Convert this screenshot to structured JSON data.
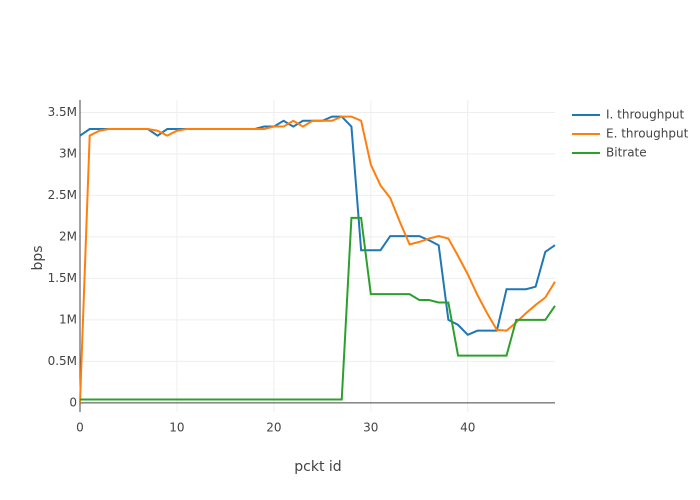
{
  "chart_data": {
    "type": "line",
    "x_label": "pckt id",
    "y_label": "bps",
    "x": [
      0,
      1,
      2,
      3,
      4,
      5,
      6,
      7,
      8,
      9,
      10,
      11,
      12,
      13,
      14,
      15,
      16,
      17,
      18,
      19,
      20,
      21,
      22,
      23,
      24,
      25,
      26,
      27,
      28,
      29,
      30,
      31,
      32,
      33,
      34,
      35,
      36,
      37,
      38,
      39,
      40,
      41,
      42,
      43,
      44,
      45,
      46,
      47,
      48,
      49
    ],
    "series": [
      {
        "name": "I. throughput",
        "color": "#1f77b4",
        "values": [
          3220000,
          3300000,
          3300000,
          3300000,
          3300000,
          3300000,
          3300000,
          3300000,
          3220000,
          3300000,
          3300000,
          3300000,
          3300000,
          3300000,
          3300000,
          3300000,
          3300000,
          3300000,
          3300000,
          3330000,
          3330000,
          3400000,
          3330000,
          3400000,
          3400000,
          3400000,
          3450000,
          3450000,
          3330000,
          1840000,
          1840000,
          1840000,
          2010000,
          2010000,
          2010000,
          2010000,
          1960000,
          1900000,
          1000000,
          940000,
          820000,
          870000,
          870000,
          870000,
          1370000,
          1370000,
          1370000,
          1400000,
          1820000,
          1900000
        ]
      },
      {
        "name": "E. throughput",
        "color": "#ff7f0e",
        "values": [
          0,
          3220000,
          3280000,
          3300000,
          3300000,
          3300000,
          3300000,
          3300000,
          3280000,
          3220000,
          3280000,
          3300000,
          3300000,
          3300000,
          3300000,
          3300000,
          3300000,
          3300000,
          3300000,
          3300000,
          3330000,
          3330000,
          3400000,
          3330000,
          3400000,
          3400000,
          3400000,
          3450000,
          3450000,
          3400000,
          2870000,
          2620000,
          2470000,
          2180000,
          1910000,
          1940000,
          1980000,
          2010000,
          1980000,
          1770000,
          1550000,
          1300000,
          1080000,
          880000,
          870000,
          970000,
          1080000,
          1180000,
          1270000,
          1460000
        ]
      },
      {
        "name": "Bitrate",
        "color": "#2ca02c",
        "values": [
          40000,
          40000,
          40000,
          40000,
          40000,
          40000,
          40000,
          40000,
          40000,
          40000,
          40000,
          40000,
          40000,
          40000,
          40000,
          40000,
          40000,
          40000,
          40000,
          40000,
          40000,
          40000,
          40000,
          40000,
          40000,
          40000,
          40000,
          40000,
          2230000,
          2230000,
          1310000,
          1310000,
          1310000,
          1310000,
          1310000,
          1240000,
          1240000,
          1210000,
          1210000,
          570000,
          570000,
          570000,
          570000,
          570000,
          570000,
          1000000,
          1000000,
          1000000,
          1000000,
          1170000
        ]
      }
    ],
    "xlim": [
      0,
      49
    ],
    "xticks": [
      0,
      10,
      20,
      30,
      40
    ],
    "ylim": [
      -110000,
      3650000
    ],
    "yticks": [
      0,
      {
        "value": 500000,
        "label": "0.5M"
      },
      {
        "value": 1000000,
        "label": "1M"
      },
      {
        "value": 1500000,
        "label": "1.5M"
      },
      {
        "value": 2000000,
        "label": "2M"
      },
      {
        "value": 2500000,
        "label": "2.5M"
      },
      {
        "value": 3000000,
        "label": "3M"
      },
      {
        "value": 3500000,
        "label": "3.5M"
      }
    ],
    "grid": true,
    "legend": "top-right"
  }
}
